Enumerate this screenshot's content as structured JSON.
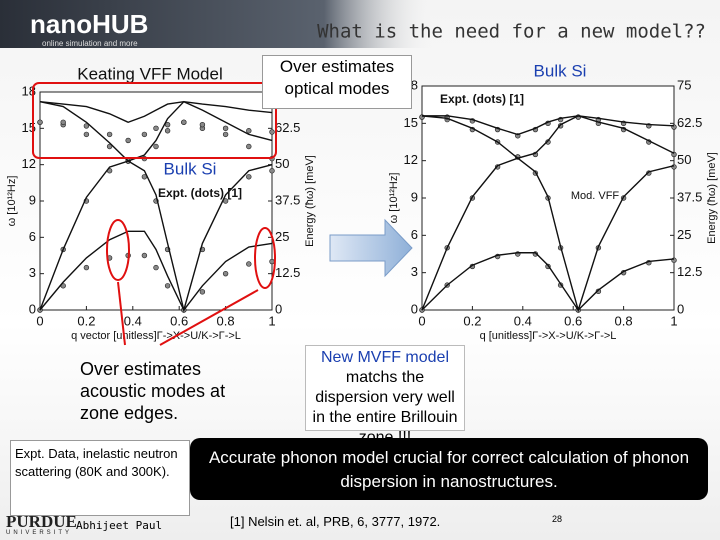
{
  "header": {
    "logo": "nanoHUB",
    "tagline": "online simulation and more",
    "title": "What is the need for a new model??"
  },
  "chart_data": [
    {
      "type": "line",
      "title": "Keating VFF Model",
      "annotations": [
        "Bulk Si",
        "Expt. (dots) [1]"
      ],
      "x_label": "q vector [unitless]Γ->X->U/K->Γ->L",
      "y_label": "ω [10¹²Hz]",
      "y2_label": "Energy (ħω) [meV]",
      "x": [
        0,
        0.1,
        0.2,
        0.3,
        0.38,
        0.45,
        0.5,
        0.55,
        0.62,
        0.7,
        0.8,
        0.9,
        1.0
      ],
      "xlim": [
        0,
        1
      ],
      "xticks": [
        0,
        0.2,
        0.4,
        0.6,
        0.8,
        1
      ],
      "ylim": [
        0,
        18
      ],
      "yticks": [
        0,
        3,
        6,
        9,
        12,
        15,
        18
      ],
      "y2lim": [
        0,
        75
      ],
      "y2ticks": [
        0,
        12.5,
        25,
        37.5,
        50,
        62.5
      ],
      "series": [
        {
          "color": "#111111",
          "values": [
            0,
            2.3,
            4.3,
            5.8,
            6.5,
            6.5,
            5,
            2.8,
            0,
            2,
            4,
            5.2,
            5.5
          ]
        },
        {
          "color": "#111111",
          "values": [
            0,
            5,
            9.3,
            11.8,
            12.3,
            11.5,
            9.5,
            5.5,
            0,
            5.5,
            9.5,
            11.5,
            12
          ]
        },
        {
          "color": "#111111",
          "values": [
            17.2,
            16.8,
            15.5,
            13.8,
            12.3,
            12.8,
            14,
            15.8,
            17.2,
            16.5,
            15.5,
            14.5,
            14
          ]
        },
        {
          "color": "#111111",
          "values": [
            17.2,
            17,
            16.8,
            16.2,
            15.5,
            16,
            16.5,
            17,
            17.2,
            17,
            16.8,
            16.5,
            16.3
          ]
        }
      ],
      "expt": [
        {
          "color": "#888888",
          "values": [
            0,
            2,
            3.5,
            4.3,
            4.5,
            4.5,
            3.5,
            2,
            0,
            1.5,
            3,
            3.8,
            4
          ]
        },
        {
          "color": "#888888",
          "values": [
            0,
            5,
            9,
            11.5,
            12.3,
            11,
            9,
            5,
            0,
            5,
            9,
            11,
            11.5
          ]
        },
        {
          "color": "#888888",
          "values": [
            15.5,
            15.3,
            14.5,
            13.5,
            12.3,
            12.5,
            13.5,
            14.8,
            15.5,
            15,
            14.5,
            13.5,
            12.5
          ]
        },
        {
          "color": "#888888",
          "values": [
            15.5,
            15.5,
            15.2,
            14.5,
            14,
            14.5,
            15,
            15.3,
            15.5,
            15.3,
            15,
            14.8,
            14.7
          ]
        }
      ]
    },
    {
      "type": "line",
      "title": "Bulk Si",
      "annotations": [
        "Expt. (dots) [1]",
        "Mod. VFF"
      ],
      "x_label": "q [unitless]Γ->X->U/K->Γ->L",
      "y_label": "ω [10¹²Hz]",
      "y2_label": "Energy (ħω) [meV]",
      "x": [
        0,
        0.1,
        0.2,
        0.3,
        0.38,
        0.45,
        0.5,
        0.55,
        0.62,
        0.7,
        0.8,
        0.9,
        1.0
      ],
      "xlim": [
        0,
        1
      ],
      "xticks": [
        0,
        0.2,
        0.4,
        0.6,
        0.8,
        1
      ],
      "ylim": [
        0,
        18
      ],
      "yticks": [
        0,
        3,
        6,
        9,
        12,
        15,
        18
      ],
      "y2lim": [
        0,
        75
      ],
      "y2ticks": [
        0,
        12.5,
        25,
        37.5,
        50,
        62.5,
        75
      ],
      "series": [
        {
          "color": "#111111",
          "values": [
            0,
            2,
            3.6,
            4.4,
            4.6,
            4.6,
            3.6,
            2.1,
            0,
            1.6,
            3.1,
            3.9,
            4.1
          ]
        },
        {
          "color": "#111111",
          "values": [
            0,
            5,
            9.1,
            11.6,
            12.2,
            11.1,
            9.1,
            5.1,
            0,
            5.1,
            9.1,
            11.1,
            11.6
          ]
        },
        {
          "color": "#111111",
          "values": [
            15.6,
            15.4,
            14.6,
            13.5,
            12.2,
            12.6,
            13.6,
            14.9,
            15.6,
            15.1,
            14.6,
            13.6,
            12.6
          ]
        },
        {
          "color": "#111111",
          "values": [
            15.6,
            15.6,
            15.3,
            14.6,
            14.1,
            14.6,
            15.1,
            15.4,
            15.6,
            15.4,
            15.1,
            14.9,
            14.8
          ]
        }
      ],
      "expt": [
        {
          "color": "#888888",
          "values": [
            0,
            2,
            3.5,
            4.3,
            4.5,
            4.5,
            3.5,
            2,
            0,
            1.5,
            3,
            3.8,
            4
          ]
        },
        {
          "color": "#888888",
          "values": [
            0,
            5,
            9,
            11.5,
            12.3,
            11,
            9,
            5,
            0,
            5,
            9,
            11,
            11.5
          ]
        },
        {
          "color": "#888888",
          "values": [
            15.5,
            15.3,
            14.5,
            13.5,
            12.3,
            12.5,
            13.5,
            14.8,
            15.5,
            15,
            14.5,
            13.5,
            12.5
          ]
        },
        {
          "color": "#888888",
          "values": [
            15.5,
            15.5,
            15.2,
            14.5,
            14,
            14.5,
            15,
            15.3,
            15.5,
            15.3,
            15,
            14.8,
            14.7
          ]
        }
      ]
    }
  ],
  "callouts": {
    "optical": "Over estimates optical modes",
    "acoustic": "Over estimates acoustic modes at zone edges.",
    "mvff_highlight": "New MVFF model",
    "mvff_rest": " matchs the dispersion very well in the entire Brillouin zone !!!",
    "expt_data": "Expt. Data, inelastic neutron scattering (80K and 300K).",
    "conclusion": "Accurate phonon model crucial for correct calculation of phonon dispersion in nanostructures."
  },
  "footer": {
    "university": "PURDUE",
    "university_sub": "UNIVERSITY",
    "author": "Abhijeet Paul",
    "reference": "[1] Nelsin et. al, PRB, 6, 3777, 1972.",
    "page": "28"
  }
}
